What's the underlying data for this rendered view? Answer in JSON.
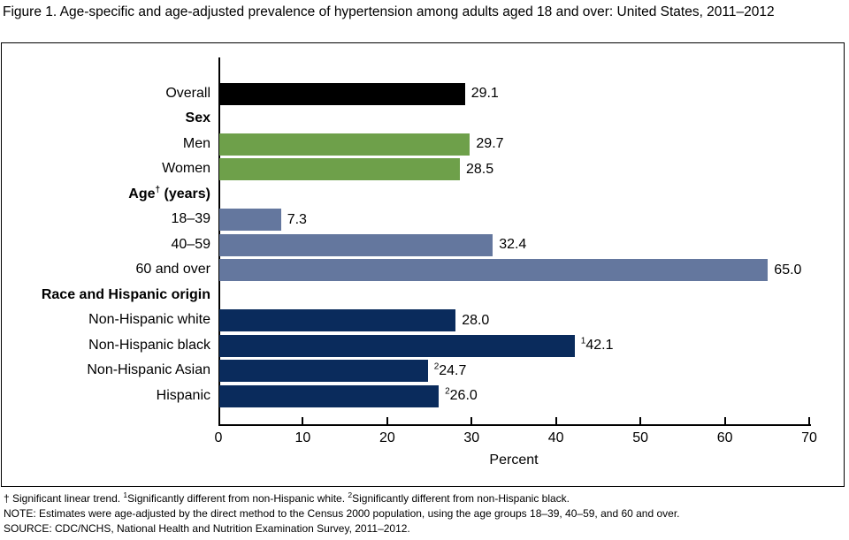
{
  "title": "Figure 1. Age-specific and age-adjusted prevalence of hypertension among adults aged 18 and over: United States, 2011–2012",
  "chart_data": {
    "type": "bar",
    "orientation": "horizontal",
    "title": "Age-specific and age-adjusted prevalence of hypertension among adults aged 18 and over: United States, 2011–2012",
    "xlabel": "Percent",
    "xlim": [
      0,
      70
    ],
    "xticks": [
      "0",
      "10",
      "20",
      "30",
      "40",
      "50",
      "60",
      "70"
    ],
    "grid": false,
    "colors": {
      "overall": "#000000",
      "sex": "#6EA04A",
      "age": "#64779E",
      "race": "#0A2B5C"
    },
    "rows": [
      {
        "type": "bar",
        "label": "Overall",
        "value": 29.1,
        "value_display": "29.1",
        "group": "overall"
      },
      {
        "type": "header",
        "label": "Sex"
      },
      {
        "type": "bar",
        "label": "Men",
        "value": 29.7,
        "value_display": "29.7",
        "group": "sex"
      },
      {
        "type": "bar",
        "label": "Women",
        "value": 28.5,
        "value_display": "28.5",
        "group": "sex"
      },
      {
        "type": "header",
        "label": "Age (years)",
        "label_segments": [
          {
            "text": "Age"
          },
          {
            "sup": "†"
          },
          {
            "text": " (years)"
          }
        ]
      },
      {
        "type": "bar",
        "label": "18–39",
        "value": 7.3,
        "value_display": "7.3",
        "group": "age"
      },
      {
        "type": "bar",
        "label": "40–59",
        "value": 32.4,
        "value_display": "32.4",
        "group": "age"
      },
      {
        "type": "bar",
        "label": "60 and over",
        "value": 65.0,
        "value_display": "65.0",
        "group": "age"
      },
      {
        "type": "header",
        "label": "Race and Hispanic origin"
      },
      {
        "type": "bar",
        "label": "Non-Hispanic white",
        "value": 28.0,
        "value_display": "28.0",
        "group": "race"
      },
      {
        "type": "bar",
        "label": "Non-Hispanic black",
        "value": 42.1,
        "value_display": "42.1",
        "value_sup": "1",
        "group": "race"
      },
      {
        "type": "bar",
        "label": "Non-Hispanic Asian",
        "value": 24.7,
        "value_display": "24.7",
        "value_sup": "2",
        "group": "race"
      },
      {
        "type": "bar",
        "label": "Hispanic",
        "value": 26.0,
        "value_display": "26.0",
        "value_sup": "2",
        "group": "race"
      }
    ]
  },
  "footnotes": {
    "line1_segments": [
      {
        "text": "† Significant linear trend. "
      },
      {
        "sup": "1"
      },
      {
        "text": "Significantly different from non-Hispanic white. "
      },
      {
        "sup": "2"
      },
      {
        "text": "Significantly different from non-Hispanic black."
      }
    ],
    "note": "NOTE: Estimates were age-adjusted by the direct method to the Census 2000 population, using the age groups 18–39, 40–59, and 60 and over.",
    "source": "SOURCE: CDC/NCHS, National Health and Nutrition Examination Survey, 2011–2012."
  }
}
